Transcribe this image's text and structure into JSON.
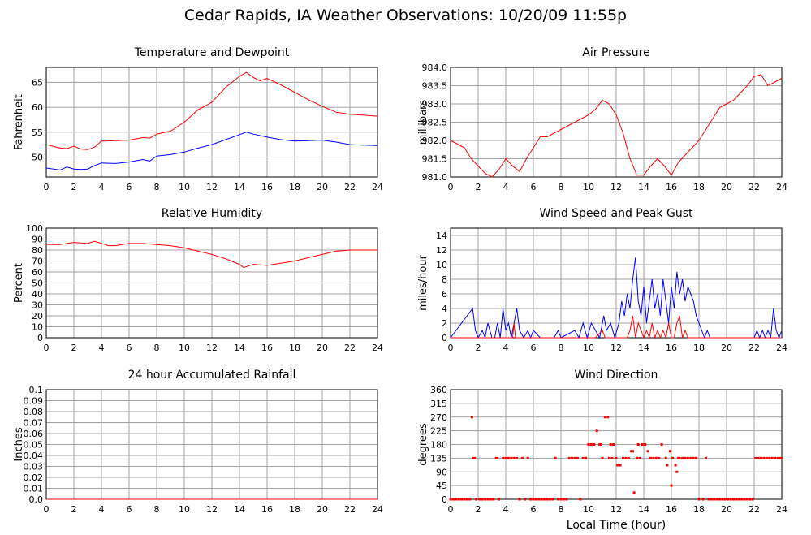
{
  "title": "Cedar Rapids, IA Weather Observations: 10/20/09 11:55p",
  "colors": {
    "red": "#ff0000",
    "blue": "#0000ff",
    "grid": "#a0a0a0",
    "axis": "#000000"
  },
  "chart_data": [
    {
      "id": "temp",
      "type": "line",
      "title": "Temperature and Dewpoint",
      "ylabel": "Fahrenheit",
      "xlabel": "",
      "xlim": [
        0,
        24
      ],
      "ylim": [
        46,
        68
      ],
      "yticks": [
        50,
        55,
        60,
        65
      ],
      "xticks": [
        0,
        2,
        4,
        6,
        8,
        10,
        12,
        14,
        16,
        18,
        20,
        22,
        24
      ],
      "grid": true,
      "series": [
        {
          "color": "#ff0000",
          "x": [
            0,
            1,
            1.5,
            2,
            2.5,
            3,
            3.5,
            4,
            5,
            6,
            7,
            7.5,
            8,
            9,
            10,
            11,
            12,
            12.5,
            13,
            14,
            14.5,
            15,
            15.5,
            16,
            17,
            18,
            19,
            20,
            21,
            22,
            23,
            24
          ],
          "y": [
            52.5,
            51.8,
            51.7,
            52.2,
            51.6,
            51.5,
            52.0,
            53.2,
            53.3,
            53.4,
            53.9,
            53.8,
            54.6,
            55.2,
            57.0,
            59.5,
            61.0,
            62.5,
            64.0,
            66.2,
            67.0,
            66.0,
            65.3,
            65.8,
            64.5,
            63.0,
            61.5,
            60.2,
            59.0,
            58.6,
            58.4,
            58.2
          ]
        },
        {
          "color": "#0000ff",
          "x": [
            0,
            1,
            1.5,
            2,
            2.5,
            3,
            3.5,
            4,
            5,
            6,
            7,
            7.5,
            8,
            9,
            10,
            11,
            12,
            13,
            14,
            14.5,
            15,
            16,
            17,
            18,
            19,
            20,
            21,
            22,
            23,
            24
          ],
          "y": [
            47.8,
            47.4,
            48.0,
            47.6,
            47.5,
            47.6,
            48.3,
            48.8,
            48.7,
            49.0,
            49.5,
            49.2,
            50.2,
            50.5,
            51.0,
            51.8,
            52.5,
            53.5,
            54.5,
            55.0,
            54.6,
            54.0,
            53.5,
            53.2,
            53.3,
            53.4,
            53.0,
            52.5,
            52.4,
            52.3
          ]
        }
      ]
    },
    {
      "id": "pressure",
      "type": "line",
      "title": "Air Pressure",
      "ylabel": "millibars",
      "xlabel": "",
      "xlim": [
        0,
        24
      ],
      "ylim": [
        981.0,
        984.0
      ],
      "yticks": [
        981.0,
        981.5,
        982.0,
        982.5,
        983.0,
        983.5,
        984.0
      ],
      "ytick_labels": [
        "981.0",
        "981.5",
        "982.0",
        "982.5",
        "983.0",
        "983.5",
        "984.0"
      ],
      "xticks": [
        0,
        2,
        4,
        6,
        8,
        10,
        12,
        14,
        16,
        18,
        20,
        22,
        24
      ],
      "grid": true,
      "series": [
        {
          "color": "#ff0000",
          "x": [
            0,
            0.5,
            1,
            1.5,
            2,
            2.5,
            3,
            3.5,
            4,
            4.5,
            5,
            5.5,
            6,
            6.5,
            7,
            7.5,
            8,
            8.5,
            9,
            9.5,
            10,
            10.5,
            11,
            11.5,
            12,
            12.5,
            13,
            13.5,
            14,
            14.5,
            15,
            15.5,
            16,
            16.5,
            17,
            17.5,
            18,
            18.5,
            19,
            19.5,
            20,
            20.5,
            21,
            21.5,
            22,
            22.5,
            23,
            23.5,
            24
          ],
          "y": [
            982.0,
            981.9,
            981.8,
            981.5,
            981.3,
            981.1,
            981.0,
            981.2,
            981.5,
            981.3,
            981.15,
            981.5,
            981.8,
            982.1,
            982.1,
            982.2,
            982.3,
            982.4,
            982.5,
            982.6,
            982.7,
            982.85,
            983.1,
            983.0,
            982.7,
            982.2,
            981.5,
            981.05,
            981.05,
            981.3,
            981.5,
            981.3,
            981.05,
            981.4,
            981.6,
            981.8,
            982.0,
            982.3,
            982.6,
            982.9,
            983.0,
            983.1,
            983.3,
            983.5,
            983.75,
            983.8,
            983.5,
            983.6,
            983.7
          ]
        }
      ]
    },
    {
      "id": "humidity",
      "type": "line",
      "title": "Relative Humidity",
      "ylabel": "Percent",
      "xlabel": "",
      "xlim": [
        0,
        24
      ],
      "ylim": [
        0,
        100
      ],
      "yticks": [
        0,
        10,
        20,
        30,
        40,
        50,
        60,
        70,
        80,
        90,
        100
      ],
      "xticks": [
        0,
        2,
        4,
        6,
        8,
        10,
        12,
        14,
        16,
        18,
        20,
        22,
        24
      ],
      "grid": true,
      "series": [
        {
          "color": "#ff0000",
          "x": [
            0,
            1,
            2,
            3,
            3.5,
            4,
            4.5,
            5,
            6,
            7,
            8,
            9,
            10,
            11,
            12,
            13,
            14,
            14.3,
            15,
            16,
            17,
            18,
            19,
            20,
            21,
            22,
            23,
            24
          ],
          "y": [
            85,
            85,
            87,
            86,
            88,
            86,
            84,
            84,
            86,
            86,
            85,
            84,
            82,
            79,
            76,
            72,
            67,
            64,
            67,
            66,
            68,
            70,
            73,
            76,
            79,
            80,
            80,
            80
          ]
        }
      ]
    },
    {
      "id": "wind",
      "type": "line",
      "title": "Wind Speed and Peak Gust",
      "ylabel": "miles/hour",
      "xlabel": "",
      "xlim": [
        0,
        24
      ],
      "ylim": [
        0,
        15
      ],
      "yticks": [
        0,
        2,
        4,
        6,
        8,
        10,
        12,
        14
      ],
      "xticks": [
        0,
        2,
        4,
        6,
        8,
        10,
        12,
        14,
        16,
        18,
        20,
        22,
        24
      ],
      "grid": true,
      "series": [
        {
          "color": "#0000ff",
          "x": [
            0,
            1.6,
            1.8,
            2.0,
            2.3,
            2.5,
            2.7,
            3.0,
            3.2,
            3.4,
            3.6,
            3.8,
            4.0,
            4.2,
            4.4,
            4.6,
            4.8,
            5.0,
            5.3,
            5.6,
            5.8,
            6.0,
            6.5,
            7.5,
            7.8,
            8.0,
            9.0,
            9.3,
            9.6,
            9.9,
            10.2,
            10.5,
            10.8,
            11.1,
            11.3,
            11.6,
            11.9,
            12.2,
            12.4,
            12.6,
            12.8,
            13.0,
            13.2,
            13.4,
            13.6,
            13.8,
            14.0,
            14.2,
            14.4,
            14.6,
            14.8,
            15.0,
            15.2,
            15.4,
            15.6,
            15.8,
            16.0,
            16.2,
            16.4,
            16.6,
            16.8,
            17.0,
            17.2,
            17.4,
            17.6,
            17.8,
            18.0,
            18.2,
            18.4,
            18.6,
            18.8,
            19.0,
            22.0,
            22.2,
            22.4,
            22.6,
            22.8,
            23.0,
            23.2,
            23.4,
            23.6,
            23.8,
            24.0
          ],
          "y": [
            0,
            4,
            1,
            0,
            1,
            0,
            2,
            0,
            0,
            2,
            0,
            4,
            1,
            2,
            0,
            2,
            4,
            1,
            0,
            1,
            0,
            1,
            0,
            0,
            1,
            0,
            1,
            0,
            2,
            0,
            2,
            1,
            0,
            3,
            1,
            2,
            0,
            2,
            5,
            3,
            6,
            4,
            8,
            11,
            5,
            3,
            7,
            2,
            5,
            8,
            4,
            6,
            3,
            8,
            5,
            2,
            7,
            4,
            9,
            6,
            8,
            5,
            7,
            6,
            5,
            3,
            2,
            1,
            0,
            1,
            0,
            0,
            0,
            1,
            0,
            1,
            0,
            1,
            0,
            4,
            1,
            0,
            1
          ]
        },
        {
          "color": "#ff0000",
          "x": [
            0,
            4.5,
            4.6,
            4.7,
            10.5,
            11.0,
            11.2,
            11.4,
            12.8,
            13.0,
            13.2,
            13.4,
            13.6,
            13.8,
            14.0,
            14.2,
            14.4,
            14.6,
            14.8,
            15.0,
            15.2,
            15.4,
            15.6,
            15.8,
            16.0,
            16.2,
            16.4,
            16.6,
            16.8,
            17.0,
            17.2,
            24.0
          ],
          "y": [
            0,
            0,
            2,
            0,
            0,
            1,
            0,
            0,
            0,
            1,
            3,
            0,
            2,
            1,
            0,
            1,
            0,
            2,
            0,
            1,
            0,
            1,
            0,
            2,
            0,
            0,
            2,
            3,
            0,
            1,
            0,
            0
          ]
        }
      ]
    },
    {
      "id": "rain",
      "type": "line",
      "title": "24 hour Accumulated Rainfall",
      "ylabel": "Inches",
      "xlabel": "",
      "xlim": [
        0,
        24
      ],
      "ylim": [
        0,
        0.1
      ],
      "yticks": [
        0,
        0.01,
        0.02,
        0.03,
        0.04,
        0.05,
        0.06,
        0.07,
        0.08,
        0.09,
        0.1
      ],
      "ytick_labels": [
        "0.0",
        "0.01",
        "0.02",
        "0.03",
        "0.04",
        "0.05",
        "0.06",
        "0.07",
        "0.08",
        "0.09",
        "0.1"
      ],
      "xticks": [
        0,
        2,
        4,
        6,
        8,
        10,
        12,
        14,
        16,
        18,
        20,
        22,
        24
      ],
      "grid": true,
      "series": [
        {
          "color": "#ff0000",
          "x": [
            0,
            24
          ],
          "y": [
            0,
            0
          ]
        }
      ]
    },
    {
      "id": "direction",
      "type": "scatter",
      "title": "Wind Direction",
      "ylabel": "degrees",
      "xlabel": "Local Time (hour)",
      "xlim": [
        0,
        24
      ],
      "ylim": [
        0,
        360
      ],
      "yticks": [
        0,
        45,
        90,
        135,
        180,
        225,
        270,
        315,
        360
      ],
      "xticks": [
        0,
        2,
        4,
        6,
        8,
        10,
        12,
        14,
        16,
        18,
        20,
        22,
        24
      ],
      "grid": true,
      "series": [
        {
          "color": "#ff0000",
          "x": [
            0,
            0.2,
            0.4,
            0.6,
            0.8,
            1.0,
            1.2,
            1.4,
            1.55,
            1.65,
            1.75,
            1.85,
            2.1,
            2.3,
            2.5,
            2.7,
            2.9,
            3.1,
            3.3,
            3.4,
            3.5,
            3.8,
            4.0,
            4.2,
            4.4,
            4.6,
            4.8,
            5.0,
            5.2,
            5.4,
            5.6,
            5.8,
            6.0,
            6.2,
            6.4,
            6.6,
            6.8,
            7.0,
            7.2,
            7.4,
            7.6,
            7.8,
            8.0,
            8.2,
            8.4,
            8.6,
            8.8,
            9.0,
            9.2,
            9.4,
            9.6,
            9.8,
            10.0,
            10.2,
            10.4,
            10.6,
            10.8,
            10.9,
            11.0,
            11.2,
            11.4,
            11.5,
            11.6,
            11.7,
            11.8,
            12.0,
            12.1,
            12.3,
            12.5,
            12.7,
            12.9,
            13.1,
            13.2,
            13.3,
            13.5,
            13.6,
            13.7,
            13.9,
            14.1,
            14.3,
            14.5,
            14.7,
            14.9,
            15.1,
            15.3,
            15.6,
            15.7,
            15.9,
            16.0,
            16.1,
            16.3,
            16.4,
            16.5,
            16.6,
            16.8,
            17.0,
            17.2,
            17.4,
            17.6,
            17.8,
            18.0,
            18.3,
            18.5,
            18.7,
            18.9,
            19.1,
            19.3,
            19.5,
            19.7,
            19.9,
            20.1,
            20.3,
            20.5,
            20.7,
            20.9,
            21.1,
            21.3,
            21.5,
            21.7,
            21.9,
            22.1,
            22.3,
            22.5,
            22.7,
            22.9,
            23.1,
            23.3,
            23.5,
            23.7,
            23.9,
            24.0
          ],
          "y": [
            0,
            0,
            0,
            0,
            0,
            0,
            0,
            0,
            270,
            135,
            135,
            0,
            0,
            0,
            0,
            0,
            0,
            0,
            135,
            135,
            0,
            135,
            135,
            135,
            135,
            135,
            135,
            0,
            135,
            0,
            135,
            0,
            0,
            0,
            0,
            0,
            0,
            0,
            0,
            0,
            135,
            0,
            0,
            0,
            0,
            135,
            135,
            135,
            135,
            0,
            135,
            135,
            180,
            180,
            180,
            225,
            180,
            180,
            135,
            270,
            270,
            135,
            180,
            135,
            180,
            135,
            112,
            112,
            135,
            135,
            135,
            158,
            158,
            22,
            135,
            180,
            135,
            180,
            180,
            158,
            135,
            135,
            135,
            135,
            180,
            135,
            112,
            158,
            45,
            135,
            112,
            90,
            135,
            135,
            135,
            135,
            135,
            135,
            135,
            135,
            0,
            0,
            135,
            0,
            0,
            0,
            0,
            0,
            0,
            0,
            0,
            0,
            0,
            0,
            0,
            0,
            0,
            0,
            0,
            0,
            135,
            135,
            135,
            135,
            135,
            135,
            135,
            135,
            135,
            135,
            135
          ]
        }
      ]
    }
  ]
}
